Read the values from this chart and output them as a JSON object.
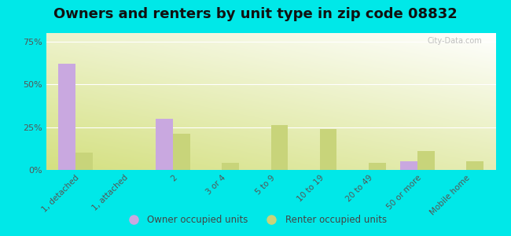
{
  "title": "Owners and renters by unit type in zip code 08832",
  "categories": [
    "1, detached",
    "1, attached",
    "2",
    "3 or 4",
    "5 to 9",
    "10 to 19",
    "20 to 49",
    "50 or more",
    "Mobile home"
  ],
  "owner_values": [
    62,
    0,
    30,
    0,
    0,
    0,
    0,
    5,
    0
  ],
  "renter_values": [
    10,
    0,
    21,
    4,
    26,
    24,
    4,
    11,
    5
  ],
  "owner_color": "#c9a8e0",
  "renter_color": "#c8d47a",
  "background_outer": "#00e8e8",
  "yticks": [
    0,
    25,
    50,
    75
  ],
  "ytick_labels": [
    "0%",
    "25%",
    "50%",
    "75%"
  ],
  "ylim": [
    0,
    80
  ],
  "bar_width": 0.35,
  "title_fontsize": 13,
  "legend_labels": [
    "Owner occupied units",
    "Renter occupied units"
  ],
  "watermark": "City-Data.com"
}
